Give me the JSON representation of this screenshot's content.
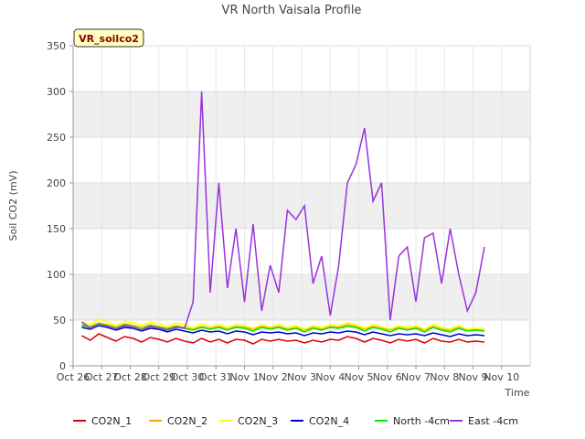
{
  "chart_data": {
    "type": "line",
    "title": "VR North Vaisala Profile",
    "xlabel": "Time",
    "ylabel": "Soil CO2 (mV)",
    "badge": "VR_soilco2",
    "ylim": [
      0,
      350
    ],
    "yticks": [
      0,
      50,
      100,
      150,
      200,
      250,
      300,
      350
    ],
    "xlim": [
      0,
      16
    ],
    "xticks": [
      "Oct 26",
      "Oct 27",
      "Oct 28",
      "Oct 29",
      "Oct 30",
      "Oct 31",
      "Nov 1",
      "Nov 2",
      "Nov 3",
      "Nov 4",
      "Nov 5",
      "Nov 6",
      "Nov 7",
      "Nov 8",
      "Nov 9",
      "Nov 10"
    ],
    "x": [
      0.3,
      0.6,
      0.9,
      1.2,
      1.5,
      1.8,
      2.1,
      2.4,
      2.7,
      3.0,
      3.3,
      3.6,
      3.9,
      4.2,
      4.5,
      4.8,
      5.1,
      5.4,
      5.7,
      6.0,
      6.3,
      6.6,
      6.9,
      7.2,
      7.5,
      7.8,
      8.1,
      8.4,
      8.7,
      9.0,
      9.3,
      9.6,
      9.9,
      10.2,
      10.5,
      10.8,
      11.1,
      11.4,
      11.7,
      12.0,
      12.3,
      12.6,
      12.9,
      13.2,
      13.5,
      13.8,
      14.1,
      14.4
    ],
    "series": [
      {
        "name": "CO2N_1",
        "color": "#dd0000",
        "values": [
          33,
          28,
          35,
          31,
          27,
          32,
          30,
          26,
          31,
          29,
          26,
          30,
          27,
          25,
          30,
          26,
          29,
          25,
          29,
          28,
          24,
          29,
          27,
          29,
          27,
          28,
          25,
          28,
          26,
          29,
          28,
          32,
          30,
          26,
          30,
          28,
          25,
          29,
          27,
          29,
          25,
          30,
          27,
          26,
          29,
          26,
          27,
          26
        ]
      },
      {
        "name": "CO2N_2",
        "color": "#ffa500",
        "values": [
          45,
          43,
          47,
          45,
          42,
          46,
          44,
          42,
          45,
          43,
          41,
          44,
          42,
          40,
          43,
          41,
          43,
          40,
          43,
          42,
          40,
          43,
          41,
          43,
          40,
          42,
          39,
          42,
          40,
          43,
          42,
          45,
          43,
          40,
          43,
          41,
          39,
          42,
          40,
          42,
          39,
          43,
          40,
          39,
          42,
          39,
          40,
          39
        ]
      },
      {
        "name": "CO2N_3",
        "color": "#ffff00",
        "values": [
          48,
          45,
          51,
          48,
          44,
          49,
          47,
          44,
          48,
          46,
          43,
          47,
          45,
          42,
          46,
          43,
          45,
          42,
          45,
          44,
          41,
          45,
          43,
          45,
          42,
          44,
          40,
          44,
          42,
          45,
          44,
          47,
          45,
          41,
          45,
          43,
          40,
          44,
          42,
          44,
          40,
          45,
          42,
          40,
          44,
          40,
          41,
          40
        ]
      },
      {
        "name": "CO2N_4",
        "color": "#0000cc",
        "values": [
          42,
          40,
          44,
          42,
          39,
          42,
          41,
          38,
          41,
          40,
          37,
          40,
          38,
          36,
          39,
          37,
          38,
          35,
          38,
          37,
          34,
          37,
          36,
          37,
          35,
          36,
          33,
          36,
          35,
          37,
          36,
          38,
          37,
          34,
          37,
          35,
          33,
          35,
          34,
          35,
          33,
          36,
          34,
          32,
          35,
          33,
          34,
          33
        ]
      },
      {
        "name": "North -4cm",
        "color": "#00ee00",
        "values": [
          44,
          42,
          46,
          44,
          41,
          45,
          43,
          40,
          44,
          42,
          40,
          43,
          41,
          39,
          42,
          40,
          42,
          39,
          42,
          41,
          38,
          42,
          40,
          42,
          39,
          41,
          37,
          41,
          39,
          42,
          41,
          43,
          42,
          38,
          42,
          40,
          37,
          41,
          39,
          41,
          37,
          42,
          39,
          37,
          41,
          38,
          39,
          38
        ]
      },
      {
        "name": "East -4cm",
        "color": "#9933dd",
        "values": [
          48,
          41,
          45,
          43,
          40,
          44,
          42,
          39,
          43,
          41,
          39,
          42,
          41,
          70,
          300,
          80,
          200,
          85,
          150,
          70,
          155,
          60,
          110,
          80,
          170,
          160,
          175,
          90,
          120,
          55,
          110,
          200,
          220,
          260,
          180,
          200,
          50,
          120,
          130,
          70,
          140,
          145,
          90,
          150,
          100,
          60,
          80,
          130
        ]
      }
    ]
  }
}
